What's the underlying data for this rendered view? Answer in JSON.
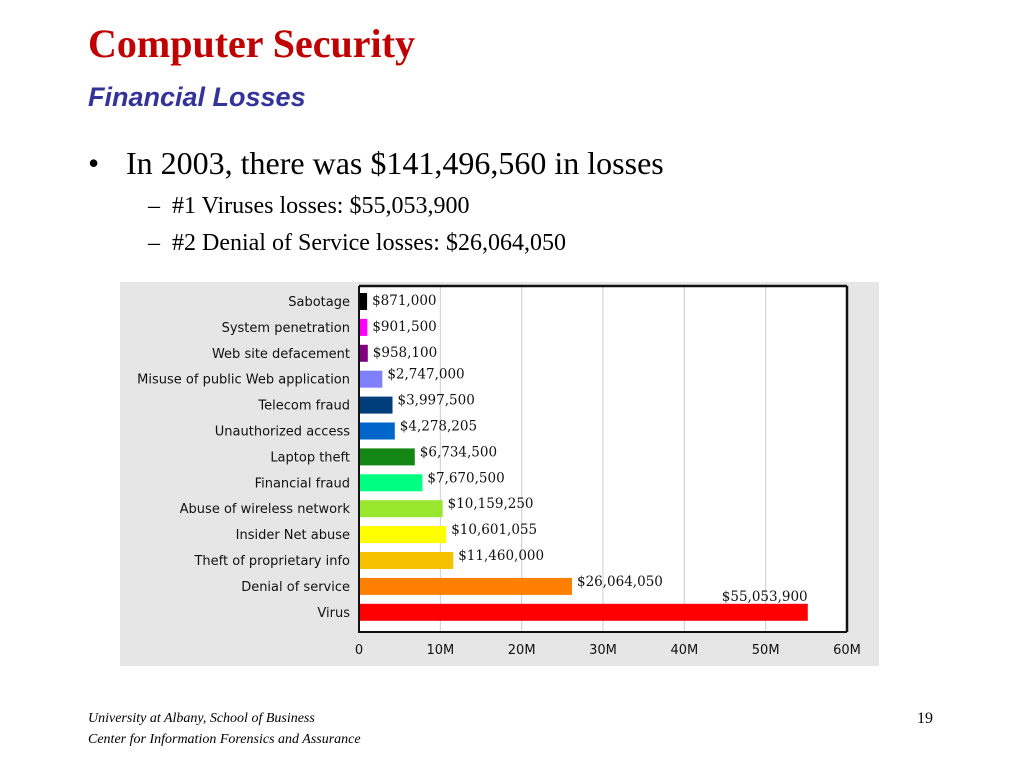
{
  "slide": {
    "title": "Computer Security",
    "subtitle": "Financial Losses",
    "bullet": "In 2003, there was $141,496,560 in losses",
    "sub_bullets": [
      "#1 Viruses losses: $55,053,900",
      "#2 Denial of Service losses: $26,064,050"
    ],
    "bullet_symbol": "•",
    "sub_bullet_symbol": "–",
    "footer_line1": "University at Albany, School of Business",
    "footer_line2": "Center for Information Forensics and Assurance",
    "page_number": "19",
    "title_color": "#c00000",
    "subtitle_color": "#333399"
  },
  "chart_data": {
    "type": "bar",
    "orientation": "horizontal",
    "title": "",
    "xlabel": "",
    "ylabel": "",
    "xlim": [
      0,
      60000000
    ],
    "x_ticks": [
      {
        "value": 0,
        "label": "0"
      },
      {
        "value": 10000000,
        "label": "10M"
      },
      {
        "value": 20000000,
        "label": "20M"
      },
      {
        "value": 30000000,
        "label": "30M"
      },
      {
        "value": 40000000,
        "label": "40M"
      },
      {
        "value": 50000000,
        "label": "50M"
      },
      {
        "value": 60000000,
        "label": "60M"
      }
    ],
    "grid": "vertical",
    "categories": [
      "Sabotage",
      "System penetration",
      "Web site defacement",
      "Misuse of public Web application",
      "Telecom fraud",
      "Unauthorized access",
      "Laptop theft",
      "Financial fraud",
      "Abuse of wireless network",
      "Insider Net abuse",
      "Theft of proprietary info",
      "Denial of service",
      "Virus"
    ],
    "values": [
      871000,
      901500,
      958100,
      2747000,
      3997500,
      4278205,
      6734500,
      7670500,
      10159250,
      10601055,
      11460000,
      26064050,
      55053900
    ],
    "value_labels": [
      "$871,000",
      "$901,500",
      "$958,100",
      "$2,747,000",
      "$3,997,500",
      "$4,278,205",
      "$6,734,500",
      "$7,670,500",
      "$10,159,250",
      "$10,601,055",
      "$11,460,000",
      "$26,064,050",
      "$55,053,900"
    ],
    "colors": [
      "#000000",
      "#ff00ff",
      "#800080",
      "#8080ff",
      "#003d7a",
      "#0066cc",
      "#138613",
      "#00ff80",
      "#99e62e",
      "#ffff00",
      "#f5c000",
      "#ff8000",
      "#ff0000"
    ]
  }
}
